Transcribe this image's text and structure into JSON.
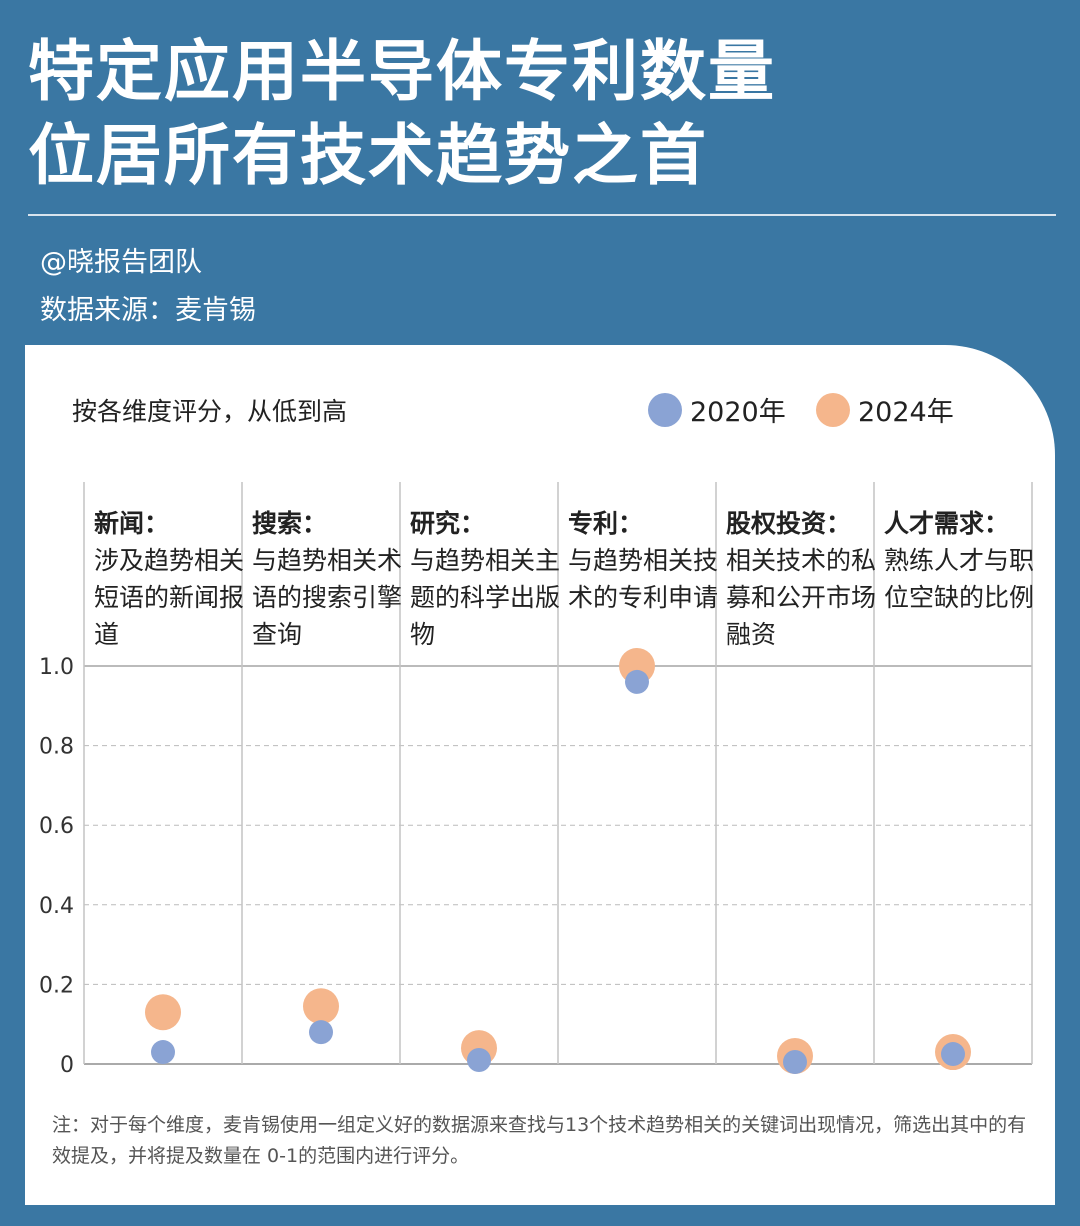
{
  "header": {
    "title_lines": [
      "特定应用半导体专利数量",
      "位居所有技术趋势之首"
    ],
    "author": "@晓报告团队",
    "source": "数据来源：麦肯锡"
  },
  "note": "注：对于每个维度，麦肯锡使用一组定义好的数据源来查找与13个技术趋势相关的关键词出现情况，筛选出其中的有效提及，并将提及数量在 0-1的范围内进行评分。",
  "colors": {
    "background": "#3a77a3",
    "series_2020": "#8aa3d4",
    "series_2024": "#f5b68c"
  },
  "chart_data": {
    "type": "scatter",
    "title": "按各维度评分，从低到高",
    "categories": [
      {
        "name": "新闻：",
        "desc": "涉及趋势相关短语的新闻报道"
      },
      {
        "name": "搜索：",
        "desc": "与趋势相关术语的搜索引擎查询"
      },
      {
        "name": "研究：",
        "desc": "与趋势相关主题的科学出版物"
      },
      {
        "name": "专利：",
        "desc": "与趋势相关技术的专利申请"
      },
      {
        "name": "股权投资：",
        "desc": "相关技术的私募和公开市场融资"
      },
      {
        "name": "人才需求：",
        "desc": "熟练人才与职位空缺的比例"
      }
    ],
    "series": [
      {
        "name": "2020年",
        "values": [
          0.03,
          0.08,
          0.01,
          0.96,
          0.005,
          0.025
        ]
      },
      {
        "name": "2024年",
        "values": [
          0.13,
          0.145,
          0.04,
          1.0,
          0.02,
          0.03
        ]
      }
    ],
    "ylim": [
      0,
      1.0
    ],
    "yticks": [
      "0",
      "0.2",
      "0.4",
      "0.6",
      "0.8",
      "1.0"
    ],
    "grid": true,
    "legend": "top-right"
  }
}
